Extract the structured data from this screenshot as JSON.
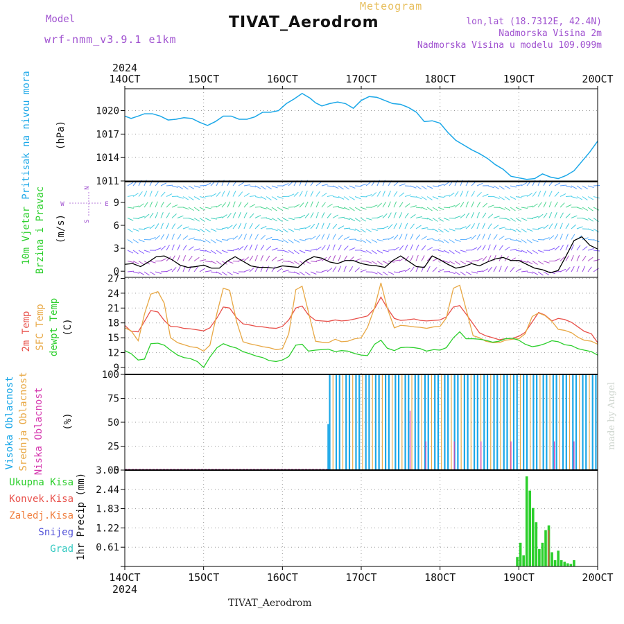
{
  "header": {
    "model_label": "Model",
    "model_name": "wrf-nmm_v3.9.1 e1km",
    "title": "TIVAT_Aerodrom",
    "meteogram": "Meteogram",
    "lonlat": "lon,lat (18.7312E, 42.4N)",
    "elev": "Nadmorska Visina 2m",
    "model_elev": "Nadmorska Visina u modelu 109.099m"
  },
  "footer": {
    "title": "TIVAT_Aerodrom",
    "credit": "made by Angel"
  },
  "time_axis": {
    "year": "2024",
    "ticks": [
      {
        "day": 14,
        "label": "14OCT"
      },
      {
        "day": 15,
        "label": "15OCT"
      },
      {
        "day": 16,
        "label": "16OCT"
      },
      {
        "day": 17,
        "label": "17OCT"
      },
      {
        "day": 18,
        "label": "18OCT"
      },
      {
        "day": 19,
        "label": "19OCT"
      },
      {
        "day": 20,
        "label": "20OCT"
      }
    ],
    "range": [
      14,
      20
    ]
  },
  "colors": {
    "pressure": "#1aa7e8",
    "temp2m": "#e8504a",
    "sfc_temp": "#e8a845",
    "dewpt": "#2ccf2c",
    "high_cloud": "#1aa7e8",
    "mid_cloud": "#e8a845",
    "low_cloud": "#d63bb0",
    "total_precip": "#2ccf2c",
    "conv_precip": "#e8504a",
    "frozen_precip": "#f08040",
    "snow": "#5050d8",
    "hail": "#30c8c0",
    "wind_label": "#2ccf2c",
    "compass": "#a052d0"
  },
  "chart_data": [
    {
      "type": "line",
      "name": "pressure",
      "labels": [
        "Pritisak na nivou mora"
      ],
      "ylabel": "(hPa)",
      "yticks": [
        1011,
        1014,
        1017,
        1020
      ],
      "ylim": [
        1011,
        1022.8
      ],
      "x": [
        14.0,
        14.08,
        14.17,
        14.25,
        14.35,
        14.45,
        14.55,
        14.65,
        14.75,
        14.85,
        14.95,
        15.05,
        15.15,
        15.25,
        15.35,
        15.45,
        15.55,
        15.65,
        15.75,
        15.85,
        15.95,
        16.05,
        16.15,
        16.25,
        16.35,
        16.42,
        16.5,
        16.6,
        16.7,
        16.8,
        16.9,
        17.0,
        17.1,
        17.2,
        17.3,
        17.4,
        17.5,
        17.6,
        17.7,
        17.8,
        17.9,
        18.0,
        18.1,
        18.2,
        18.3,
        18.4,
        18.5,
        18.6,
        18.7,
        18.8,
        18.9,
        19.0,
        19.1,
        19.2,
        19.3,
        19.4,
        19.5,
        19.6,
        19.7,
        19.8,
        19.9,
        20.0
      ],
      "y": [
        1019.3,
        1019.0,
        1019.3,
        1019.6,
        1019.6,
        1019.3,
        1018.8,
        1018.9,
        1019.1,
        1019.0,
        1018.5,
        1018.1,
        1018.6,
        1019.3,
        1019.3,
        1018.9,
        1018.9,
        1019.2,
        1019.8,
        1019.8,
        1020.0,
        1020.9,
        1021.5,
        1022.2,
        1021.6,
        1021.0,
        1020.6,
        1020.9,
        1021.1,
        1020.9,
        1020.3,
        1021.3,
        1021.8,
        1021.7,
        1021.3,
        1020.9,
        1020.8,
        1020.4,
        1019.8,
        1018.6,
        1018.7,
        1018.4,
        1017.2,
        1016.2,
        1015.6,
        1015.0,
        1014.5,
        1013.9,
        1013.1,
        1012.5,
        1011.6,
        1011.4,
        1011.2,
        1011.3,
        1011.9,
        1011.5,
        1011.3,
        1011.7,
        1012.3,
        1013.5,
        1014.7,
        1016.1
      ]
    },
    {
      "type": "wind",
      "name": "wind",
      "labels": [
        "10m Vjetar",
        "Brzina i Pravac"
      ],
      "ylabel": "(m/s)",
      "compass": [
        "N",
        "W",
        "E",
        "S"
      ],
      "yticks": [
        0,
        3,
        6,
        9
      ],
      "ylim": [
        -0.8,
        11.8
      ],
      "speed_x": [
        14.0,
        14.1,
        14.2,
        14.3,
        14.4,
        14.5,
        14.6,
        14.7,
        14.8,
        14.9,
        15.0,
        15.1,
        15.2,
        15.3,
        15.4,
        15.5,
        15.6,
        15.7,
        15.8,
        15.9,
        16.0,
        16.1,
        16.2,
        16.3,
        16.4,
        16.5,
        16.6,
        16.7,
        16.8,
        16.9,
        17.0,
        17.1,
        17.2,
        17.3,
        17.4,
        17.5,
        17.6,
        17.7,
        17.8,
        17.9,
        18.0,
        18.1,
        18.2,
        18.3,
        18.4,
        18.5,
        18.6,
        18.7,
        18.8,
        18.9,
        19.0,
        19.1,
        19.2,
        19.3,
        19.4,
        19.5,
        19.6,
        19.7,
        19.8,
        19.9,
        20.0
      ],
      "speed": [
        0.9,
        1.0,
        0.6,
        1.2,
        1.9,
        2.0,
        1.5,
        0.8,
        0.5,
        0.6,
        0.8,
        0.4,
        0.4,
        1.3,
        1.9,
        1.3,
        0.7,
        0.5,
        0.5,
        0.4,
        0.7,
        0.6,
        0.5,
        1.4,
        1.9,
        1.7,
        1.2,
        1.0,
        1.4,
        1.4,
        1.0,
        0.8,
        0.7,
        0.5,
        1.4,
        2.0,
        1.3,
        0.6,
        0.5,
        2.0,
        1.5,
        0.9,
        0.4,
        0.6,
        1.0,
        0.7,
        1.2,
        1.6,
        1.8,
        1.4,
        1.4,
        0.9,
        0.4,
        0.2,
        -0.2,
        0.1,
        2.0,
        4.0,
        4.5,
        3.4,
        2.9
      ]
    },
    {
      "type": "line",
      "name": "temperature",
      "labels": [
        "2m Temp",
        "SFC Temp",
        "dewpt Temp"
      ],
      "ylabel": "(C)",
      "yticks": [
        9,
        12,
        15,
        18,
        21,
        24,
        27
      ],
      "ylim": [
        7.6,
        27.2
      ],
      "x": [
        14.0,
        14.08,
        14.17,
        14.25,
        14.33,
        14.42,
        14.5,
        14.58,
        14.67,
        14.75,
        14.83,
        14.92,
        15.0,
        15.08,
        15.17,
        15.25,
        15.33,
        15.42,
        15.5,
        15.58,
        15.67,
        15.75,
        15.83,
        15.92,
        16.0,
        16.08,
        16.17,
        16.25,
        16.33,
        16.42,
        16.5,
        16.58,
        16.67,
        16.75,
        16.83,
        16.92,
        17.0,
        17.08,
        17.17,
        17.25,
        17.33,
        17.42,
        17.5,
        17.58,
        17.67,
        17.75,
        17.83,
        17.92,
        18.0,
        18.08,
        18.17,
        18.25,
        18.33,
        18.42,
        18.5,
        18.58,
        18.67,
        18.75,
        18.83,
        18.92,
        19.0,
        19.08,
        19.17,
        19.25,
        19.33,
        19.42,
        19.5,
        19.58,
        19.67,
        19.75,
        19.83,
        19.92,
        20.0
      ],
      "series": [
        {
          "name": "2m Temp",
          "values": [
            17.5,
            16.3,
            16.2,
            18.3,
            20.5,
            20.2,
            18.5,
            17.3,
            17.2,
            16.9,
            16.8,
            16.6,
            16.4,
            17.0,
            19.0,
            21.2,
            21.0,
            19.0,
            17.8,
            17.6,
            17.3,
            17.2,
            17.0,
            16.9,
            17.3,
            18.6,
            21.0,
            21.4,
            19.6,
            18.5,
            18.4,
            18.3,
            18.6,
            18.4,
            18.5,
            18.8,
            19.1,
            19.4,
            20.9,
            23.2,
            21.0,
            18.9,
            18.5,
            18.6,
            18.8,
            18.5,
            18.4,
            18.5,
            18.6,
            19.2,
            21.2,
            21.5,
            19.8,
            17.8,
            16.0,
            15.4,
            15.0,
            14.6,
            14.8,
            14.9,
            15.3,
            16.1,
            18.2,
            20.1,
            19.6,
            18.4,
            18.9,
            18.7,
            18.1,
            17.2,
            16.3,
            15.8,
            14.0
          ]
        },
        {
          "name": "SFC Temp",
          "values": [
            17.0,
            16.4,
            14.4,
            19.8,
            23.8,
            24.3,
            22.0,
            15.0,
            14.0,
            13.6,
            13.2,
            13.0,
            12.3,
            13.5,
            20.0,
            25.0,
            24.6,
            18.2,
            14.2,
            13.8,
            13.5,
            13.2,
            13.0,
            12.6,
            12.8,
            15.8,
            24.7,
            25.4,
            20.2,
            14.3,
            14.1,
            14.0,
            14.7,
            14.2,
            14.3,
            14.8,
            15.0,
            17.1,
            21.1,
            26.1,
            21.0,
            17.0,
            17.5,
            17.4,
            17.2,
            17.1,
            16.9,
            17.2,
            17.3,
            19.0,
            25.0,
            25.6,
            20.8,
            15.4,
            15.0,
            14.3,
            14.0,
            14.0,
            14.5,
            14.7,
            14.8,
            15.8,
            19.3,
            20.0,
            19.5,
            18.3,
            16.7,
            16.5,
            16.0,
            15.1,
            14.5,
            14.3,
            13.7
          ]
        },
        {
          "name": "dewpt Temp",
          "values": [
            12.4,
            11.8,
            10.5,
            10.7,
            13.8,
            13.9,
            13.5,
            12.5,
            11.5,
            11.0,
            10.8,
            10.2,
            9.0,
            11.1,
            13.0,
            13.8,
            13.3,
            12.9,
            12.2,
            11.8,
            11.3,
            11.0,
            10.4,
            10.2,
            10.5,
            11.2,
            13.5,
            13.7,
            12.3,
            12.5,
            12.6,
            12.7,
            12.2,
            12.4,
            12.3,
            11.8,
            11.5,
            11.4,
            13.7,
            14.5,
            12.9,
            12.4,
            13.0,
            13.1,
            13.0,
            12.8,
            12.3,
            12.6,
            12.5,
            13.0,
            15.0,
            16.2,
            14.8,
            14.8,
            14.7,
            14.5,
            14.1,
            14.3,
            14.8,
            14.9,
            14.5,
            13.7,
            13.2,
            13.4,
            13.8,
            14.4,
            14.2,
            13.6,
            13.4,
            12.8,
            12.5,
            12.2,
            11.5
          ]
        }
      ]
    },
    {
      "type": "bar",
      "name": "cloud",
      "labels": [
        "Visoka Oblacnost",
        "Srednja Oblacnost",
        "Niska Oblacnost"
      ],
      "ylabel": "(%)",
      "yticks": [
        0,
        25,
        50,
        75,
        100
      ],
      "ylim": [
        0,
        100
      ],
      "onset_day": 16.6,
      "onset_value": 48
    },
    {
      "type": "bar",
      "name": "precip",
      "labels": [
        "Ukupna Kisa",
        "Konvek.Kisa",
        "Zaledj.Kisa",
        "Snijeg",
        "Grad"
      ],
      "ylabel": "1hr Precip (mm)",
      "yticks": [
        0,
        0.61,
        1.22,
        1.83,
        2.44,
        3.05
      ],
      "ylim": [
        0,
        3.05
      ],
      "x": [
        18.98,
        19.02,
        19.06,
        19.1,
        19.14,
        19.18,
        19.22,
        19.26,
        19.3,
        19.34,
        19.38,
        19.42,
        19.46,
        19.5,
        19.54,
        19.58,
        19.62,
        19.66,
        19.7
      ],
      "total": [
        0.3,
        0.75,
        0.35,
        2.85,
        2.4,
        1.85,
        1.4,
        0.55,
        0.75,
        1.15,
        1.3,
        0.45,
        0.2,
        0.5,
        0.2,
        0.15,
        0.1,
        0.08,
        0.2
      ],
      "convective": [
        0.0,
        0.0,
        0.0,
        0.0,
        0.0,
        0.0,
        0.0,
        0.0,
        0.0,
        0.0,
        1.15,
        0.0,
        0.0,
        0.0,
        0.0,
        0.0,
        0.0,
        0.0,
        0.0
      ]
    }
  ]
}
